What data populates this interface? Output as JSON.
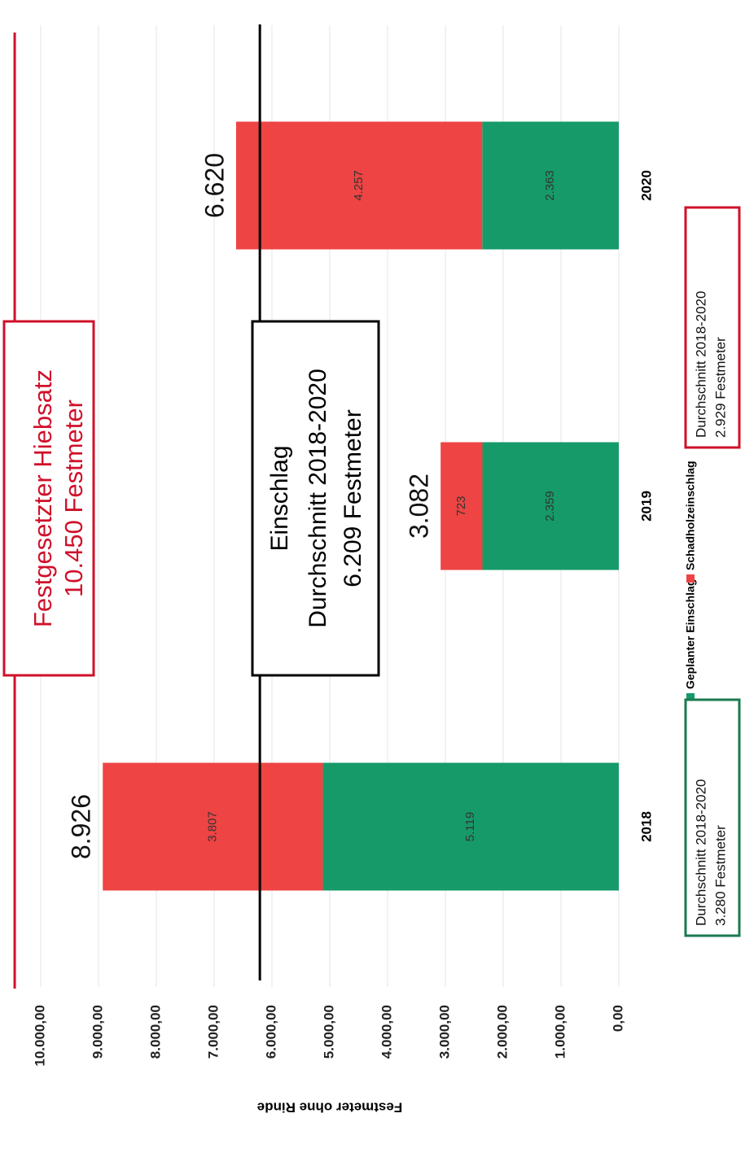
{
  "chart_data": {
    "type": "stacked_bar",
    "y_label": "Festmeter ohne Rinde",
    "categories": [
      "2018",
      "2019",
      "2020"
    ],
    "series": [
      {
        "name": "Geplanter Einschlag",
        "color": "#169a6a",
        "values": [
          5119,
          2359,
          2363
        ],
        "value_labels": [
          "5.119",
          "2.359",
          "2.363"
        ]
      },
      {
        "name": "Schadholzeinschlag",
        "color": "#ee4444",
        "values": [
          3807,
          723,
          4257
        ],
        "value_labels": [
          "3.807",
          "723",
          "4.257"
        ]
      }
    ],
    "totals": {
      "values": [
        8926,
        3082,
        6620
      ],
      "value_labels": [
        "8.926",
        "3.082",
        "6.620"
      ]
    },
    "ylim": [
      0,
      10000
    ],
    "yticks": [
      {
        "value": 0,
        "label": "0,00"
      },
      {
        "value": 1000,
        "label": "1.000,00"
      },
      {
        "value": 2000,
        "label": "2.000,00"
      },
      {
        "value": 3000,
        "label": "3.000,00"
      },
      {
        "value": 4000,
        "label": "4.000,00"
      },
      {
        "value": 5000,
        "label": "5.000,00"
      },
      {
        "value": 6000,
        "label": "6.000,00"
      },
      {
        "value": 7000,
        "label": "7.000,00"
      },
      {
        "value": 8000,
        "label": "8.000,00"
      },
      {
        "value": 9000,
        "label": "9.000,00"
      },
      {
        "value": 10000,
        "label": "10.000,00"
      }
    ],
    "grid": true,
    "reference_lines": [
      {
        "value": 10450,
        "color": "#d0102a",
        "label": [
          "Festgesetzter Hiebsatz",
          "10.450 Festmeter"
        ]
      },
      {
        "value": 6209,
        "color": "#000000",
        "label": [
          "Einschlag",
          "Durchschnitt 2018-2020",
          "6.209 Festmeter"
        ]
      }
    ],
    "notes": [
      {
        "color": "#1a7a50",
        "lines": [
          "Durchschnitt 2018-2020",
          "3.280 Festmeter"
        ]
      },
      {
        "color": "#d0102a",
        "lines": [
          "Durchschnitt 2018-2020",
          "2.929 Festmeter"
        ]
      }
    ]
  }
}
